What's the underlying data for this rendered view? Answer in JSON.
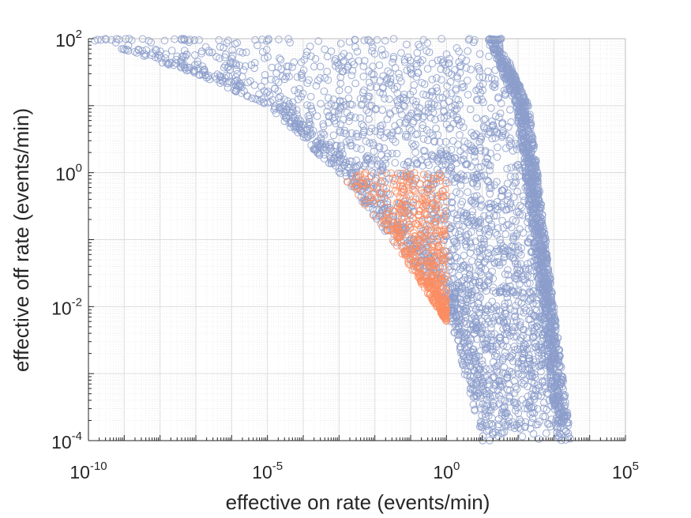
{
  "chart_data": {
    "type": "scatter",
    "xscale": "log",
    "yscale": "log",
    "xlim": [
      1e-10,
      100000
    ],
    "ylim": [
      0.0001,
      100
    ],
    "xlabel": "effective on rate (events/min)",
    "ylabel": "effective off rate (events/min)",
    "x_ticks": [
      {
        "base": "10",
        "exp": "-10",
        "value": 1e-10
      },
      {
        "base": "10",
        "exp": "-5",
        "value": 1e-05
      },
      {
        "base": "10",
        "exp": "0",
        "value": 1
      },
      {
        "base": "10",
        "exp": "5",
        "value": 100000
      }
    ],
    "y_ticks": [
      {
        "base": "10",
        "exp": "-4",
        "value": 0.0001
      },
      {
        "base": "10",
        "exp": "-2",
        "value": 0.01
      },
      {
        "base": "10",
        "exp": "0",
        "value": 1
      },
      {
        "base": "10",
        "exp": "2",
        "value": 100
      }
    ],
    "grid": true,
    "minor_grid": true,
    "marker": "open-circle",
    "series": [
      {
        "color": "#8c9dcb",
        "point_count": 3800,
        "region": {
          "description_upper_left": "y near 100 for x from 1e-10 up to about 10; boundary curves down to y ≈ 1 at x ≈ 0.01",
          "right_edge_x_at_y": [
            [
              100,
              30
            ],
            [
              10,
              200
            ],
            [
              1,
              350
            ],
            [
              0.01,
              1000
            ],
            [
              0.0001,
              3000
            ]
          ],
          "left_edge_x_at_y": [
            [
              100,
              1e-10
            ],
            [
              30,
              1e-07
            ],
            [
              10,
              1e-05
            ],
            [
              3,
              0.0001
            ],
            [
              1,
              0.001
            ],
            [
              0.1,
              0.03
            ],
            [
              0.01,
              1
            ],
            [
              0.0001,
              10
            ]
          ]
        }
      },
      {
        "color": "#fc8d62",
        "point_count": 500,
        "region": {
          "x_range": [
            0.001,
            1
          ],
          "y_range": [
            0.006,
            1
          ],
          "left_edge_x_at_y": [
            [
              1,
              0.001
            ],
            [
              0.1,
              0.03
            ],
            [
              0.006,
              1
            ]
          ]
        }
      }
    ]
  }
}
